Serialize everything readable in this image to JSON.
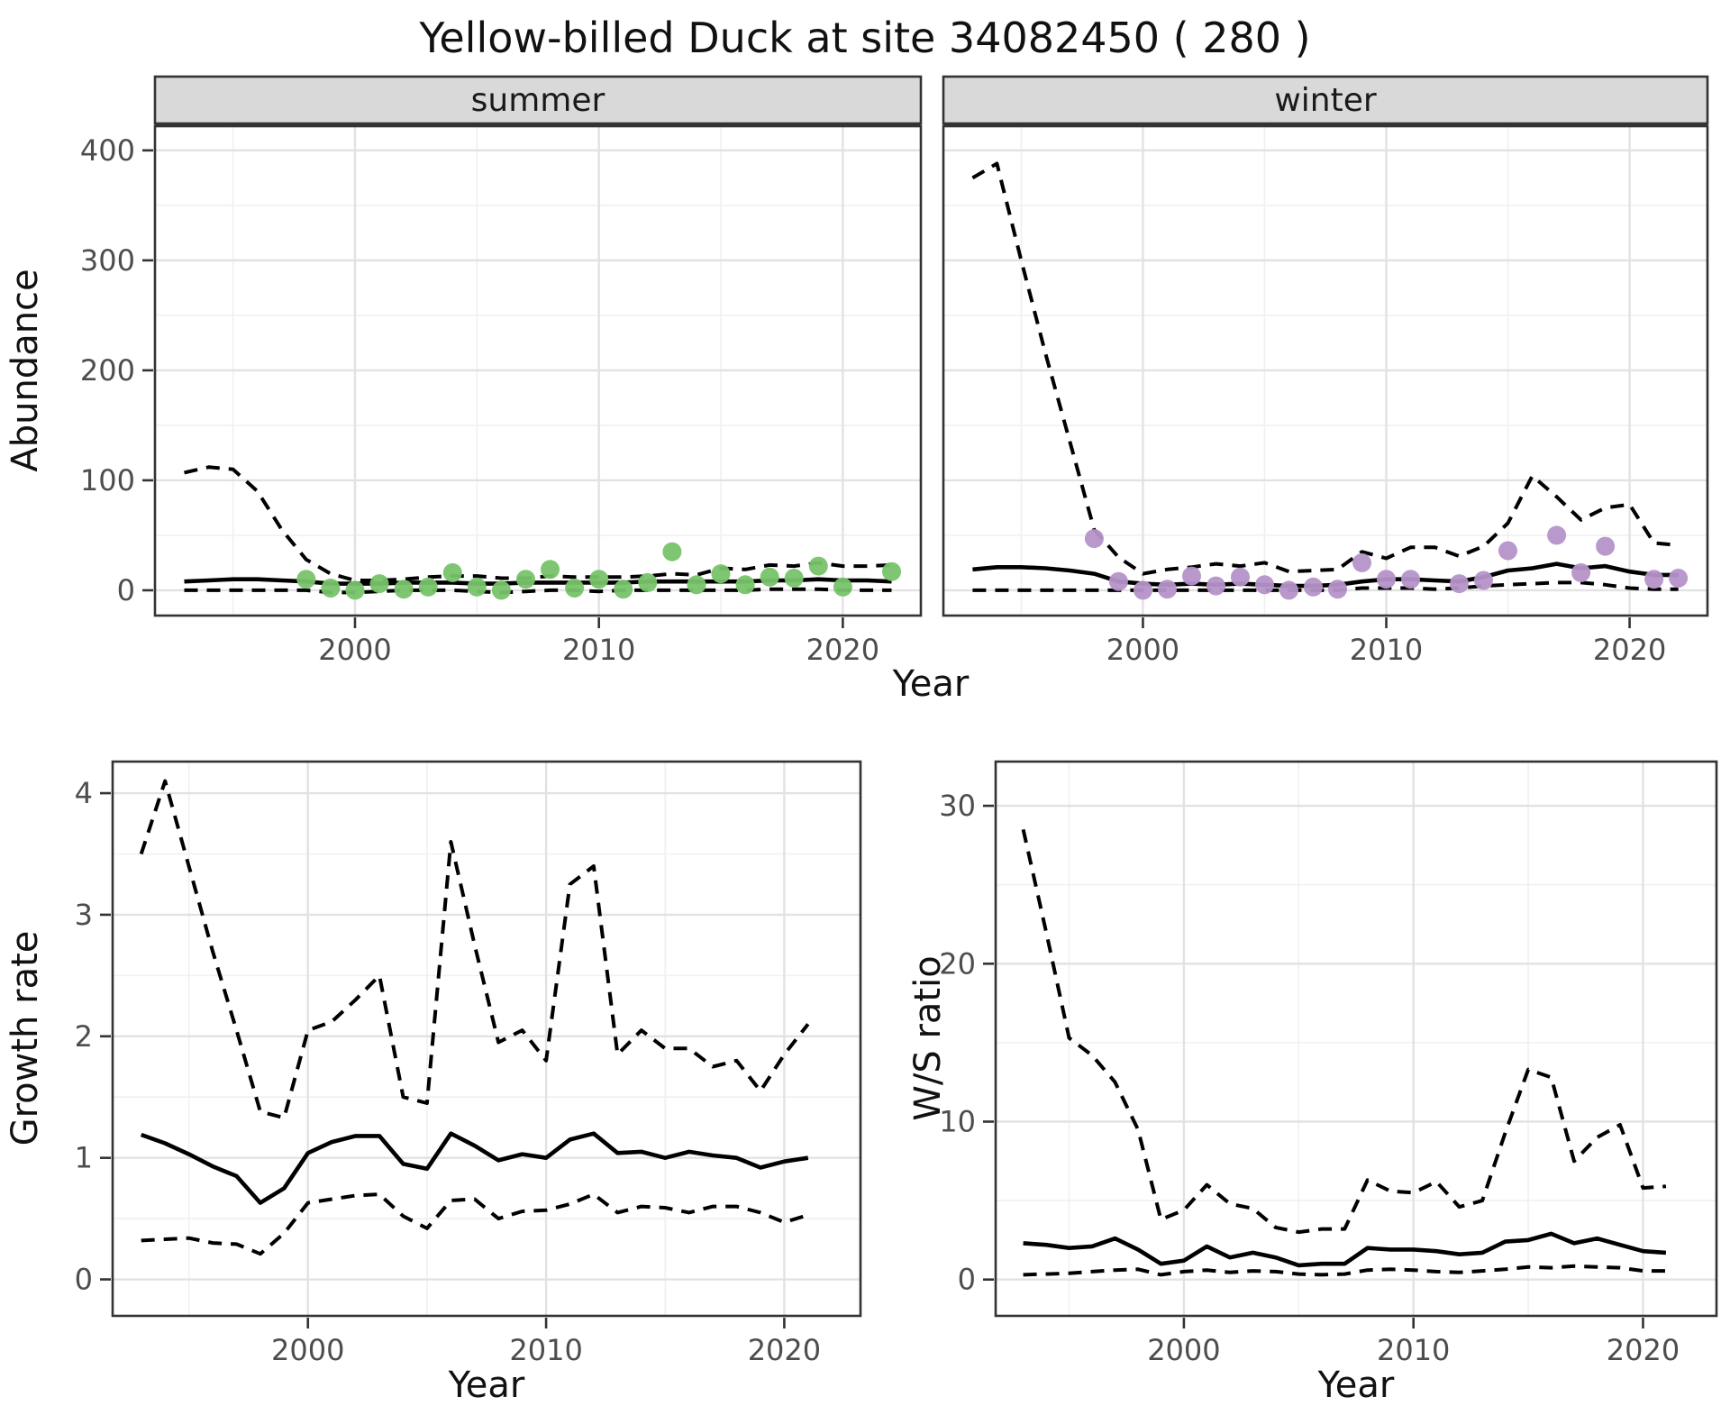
{
  "title": "Yellow-billed Duck at site 34082450 ( 280 )",
  "labels": {
    "abundance": "Abundance",
    "year": "Year",
    "growth_rate": "Growth rate",
    "ws_ratio": "W/S ratio"
  },
  "colors": {
    "summer_points": "#77c36a",
    "winter_points": "#b592c8",
    "line": "#000000",
    "strip_fill": "#d9d9d9",
    "panel_border": "#333333",
    "grid_major": "#e2e2e2",
    "grid_minor": "#f0f0f0",
    "tick_text": "#4d4d4d"
  },
  "chart_data": {
    "abundance": {
      "type": "line",
      "ylabel": "Abundance",
      "xlabel": "Year",
      "x_ticks": [
        2000,
        2010,
        2020
      ],
      "y_ticks": [
        0,
        100,
        200,
        300,
        400
      ],
      "xlim": [
        1991.8,
        2023.2
      ],
      "ylim": [
        -23,
        422
      ],
      "grid": true,
      "facets": [
        {
          "facet": "summer",
          "point_color": "#77c36a",
          "years": [
            1993,
            1994,
            1995,
            1996,
            1997,
            1998,
            1999,
            2000,
            2001,
            2002,
            2003,
            2004,
            2005,
            2006,
            2007,
            2008,
            2009,
            2010,
            2011,
            2012,
            2013,
            2014,
            2015,
            2016,
            2017,
            2018,
            2019,
            2020,
            2021,
            2022
          ],
          "median": [
            8,
            9,
            10,
            10,
            9,
            8,
            6,
            6,
            6,
            7,
            7,
            7,
            6,
            6,
            7,
            7,
            7,
            7,
            7,
            8,
            8,
            8,
            8,
            8,
            9,
            9,
            10,
            9,
            9,
            8
          ],
          "upper": [
            107,
            112,
            110,
            90,
            55,
            28,
            15,
            9,
            9,
            10,
            12,
            13,
            13,
            11,
            11,
            13,
            12,
            12,
            12,
            13,
            15,
            14,
            20,
            19,
            23,
            22,
            25,
            22,
            22,
            23
          ],
          "lower": [
            0,
            0,
            0,
            0,
            0,
            0,
            -2,
            -2,
            -1,
            0,
            0,
            0,
            -1,
            -2,
            -1,
            0,
            0,
            -1,
            0,
            0,
            0,
            0,
            0,
            0,
            1,
            1,
            1,
            0,
            0,
            0
          ],
          "obs_years": [
            1998,
            1999,
            2000,
            2001,
            2002,
            2003,
            2004,
            2005,
            2006,
            2007,
            2008,
            2009,
            2010,
            2011,
            2012,
            2013,
            2014,
            2015,
            2016,
            2017,
            2018,
            2019,
            2020,
            2022
          ],
          "obs_values": [
            10,
            2,
            0,
            6,
            1,
            3,
            16,
            3,
            0,
            10,
            19,
            2,
            10,
            1,
            7,
            35,
            5,
            15,
            5,
            12,
            11,
            22,
            3,
            17
          ]
        },
        {
          "facet": "winter",
          "point_color": "#b592c8",
          "years": [
            1993,
            1994,
            1995,
            1996,
            1997,
            1998,
            1999,
            2000,
            2001,
            2002,
            2003,
            2004,
            2005,
            2006,
            2007,
            2008,
            2009,
            2010,
            2011,
            2012,
            2013,
            2014,
            2015,
            2016,
            2017,
            2018,
            2019,
            2020,
            2021,
            2022
          ],
          "median": [
            19,
            21,
            21,
            20,
            18,
            15,
            8,
            6,
            5,
            6,
            5,
            6,
            5,
            4,
            4,
            5,
            8,
            10,
            10,
            9,
            8,
            12,
            18,
            20,
            24,
            20,
            22,
            17,
            14,
            14
          ],
          "upper": [
            375,
            388,
            300,
            215,
            135,
            55,
            30,
            15,
            19,
            21,
            24,
            22,
            25,
            17,
            18,
            19,
            35,
            29,
            39,
            39,
            31,
            40,
            61,
            104,
            85,
            64,
            75,
            78,
            43,
            41
          ],
          "lower": [
            0,
            0,
            0,
            0,
            0,
            0,
            0,
            0,
            0,
            0,
            0,
            0,
            0,
            0,
            0,
            0,
            2,
            2,
            2,
            1,
            2,
            4,
            5,
            6,
            7,
            7,
            5,
            2,
            1,
            1
          ],
          "obs_years": [
            1998,
            1999,
            2000,
            2001,
            2002,
            2003,
            2004,
            2005,
            2006,
            2007,
            2008,
            2009,
            2010,
            2011,
            2013,
            2014,
            2015,
            2017,
            2018,
            2019,
            2021,
            2022
          ],
          "obs_values": [
            47,
            8,
            0,
            1,
            13,
            4,
            12,
            5,
            0,
            3,
            1,
            25,
            10,
            10,
            6,
            9,
            36,
            50,
            16,
            40,
            10,
            11
          ]
        }
      ]
    },
    "growth_rate": {
      "type": "line",
      "ylabel": "Growth rate",
      "xlabel": "Year",
      "x_ticks": [
        2000,
        2010,
        2020
      ],
      "y_ticks": [
        0,
        1,
        2,
        3,
        4
      ],
      "xlim": [
        1991.8,
        2023.2
      ],
      "ylim": [
        -0.3,
        4.26
      ],
      "grid": true,
      "years": [
        1993,
        1994,
        1995,
        1996,
        1997,
        1998,
        1999,
        2000,
        2001,
        2002,
        2003,
        2004,
        2005,
        2006,
        2007,
        2008,
        2009,
        2010,
        2011,
        2012,
        2013,
        2014,
        2015,
        2016,
        2017,
        2018,
        2019,
        2020,
        2021
      ],
      "median": [
        1.19,
        1.12,
        1.03,
        0.93,
        0.85,
        0.63,
        0.75,
        1.04,
        1.13,
        1.18,
        1.18,
        0.95,
        0.91,
        1.2,
        1.1,
        0.98,
        1.03,
        1.0,
        1.15,
        1.2,
        1.04,
        1.05,
        1.0,
        1.05,
        1.02,
        1.0,
        0.92,
        0.97,
        1.0
      ],
      "upper": [
        3.5,
        4.1,
        3.4,
        2.7,
        2.05,
        1.38,
        1.33,
        2.05,
        2.12,
        2.3,
        2.5,
        1.5,
        1.45,
        3.6,
        2.75,
        1.95,
        2.05,
        1.8,
        3.25,
        3.4,
        1.85,
        2.05,
        1.9,
        1.9,
        1.75,
        1.8,
        1.55,
        1.85,
        2.1
      ],
      "lower": [
        0.32,
        0.33,
        0.34,
        0.3,
        0.29,
        0.21,
        0.38,
        0.63,
        0.66,
        0.69,
        0.7,
        0.52,
        0.42,
        0.65,
        0.66,
        0.5,
        0.56,
        0.57,
        0.62,
        0.7,
        0.55,
        0.6,
        0.59,
        0.55,
        0.6,
        0.6,
        0.55,
        0.47,
        0.53
      ]
    },
    "ws_ratio": {
      "type": "line",
      "ylabel": "W/S ratio",
      "xlabel": "Year",
      "x_ticks": [
        2000,
        2010,
        2020
      ],
      "y_ticks": [
        0,
        10,
        20,
        30
      ],
      "xlim": [
        1991.8,
        2023.2
      ],
      "ylim": [
        -2.3,
        32.8
      ],
      "grid": true,
      "years": [
        1993,
        1994,
        1995,
        1996,
        1997,
        1998,
        1999,
        2000,
        2001,
        2002,
        2003,
        2004,
        2005,
        2006,
        2007,
        2008,
        2009,
        2010,
        2011,
        2012,
        2013,
        2014,
        2015,
        2016,
        2017,
        2018,
        2019,
        2020,
        2021
      ],
      "median": [
        2.3,
        2.2,
        2.0,
        2.1,
        2.6,
        1.9,
        1.0,
        1.2,
        2.1,
        1.4,
        1.7,
        1.4,
        0.9,
        1.0,
        1.0,
        2.0,
        1.9,
        1.9,
        1.8,
        1.6,
        1.7,
        2.4,
        2.5,
        2.9,
        2.3,
        2.6,
        2.2,
        1.8,
        1.7
      ],
      "upper": [
        28.5,
        22.0,
        15.3,
        14.2,
        12.5,
        9.5,
        3.8,
        4.4,
        6.0,
        4.8,
        4.5,
        3.3,
        3.0,
        3.2,
        3.2,
        6.3,
        5.6,
        5.5,
        6.2,
        4.6,
        5.0,
        9.3,
        13.3,
        12.8,
        7.5,
        9.0,
        9.8,
        5.8,
        5.9
      ],
      "lower": [
        0.3,
        0.35,
        0.4,
        0.5,
        0.6,
        0.65,
        0.3,
        0.5,
        0.6,
        0.45,
        0.55,
        0.5,
        0.35,
        0.3,
        0.35,
        0.6,
        0.65,
        0.6,
        0.5,
        0.45,
        0.55,
        0.65,
        0.8,
        0.75,
        0.85,
        0.8,
        0.75,
        0.55,
        0.55
      ]
    }
  }
}
